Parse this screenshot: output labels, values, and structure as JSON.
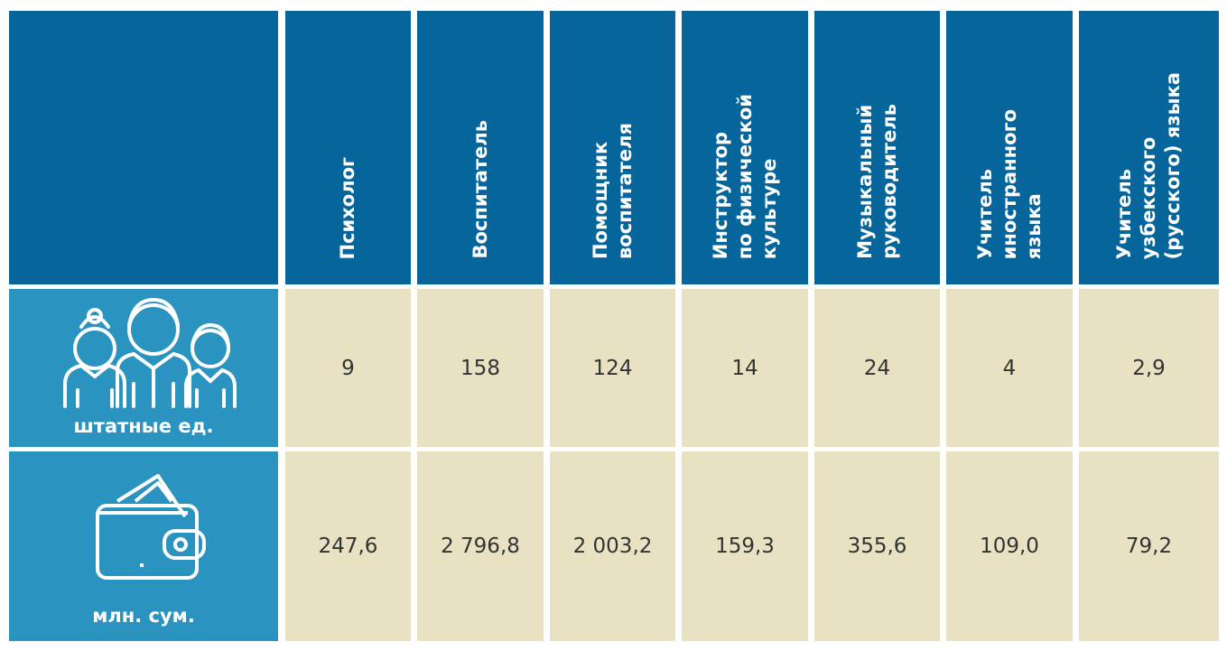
{
  "table": {
    "columns": [
      [
        "Психолог"
      ],
      [
        "Воспитатель"
      ],
      [
        "Помощник",
        "воспитателя"
      ],
      [
        "Инструктор",
        "по физической",
        "культуре"
      ],
      [
        "Музыкальный",
        "руководитель"
      ],
      [
        "Учитель",
        "иностранного",
        "языка"
      ],
      [
        "Учитель",
        "узбекского",
        "(русского) языка"
      ]
    ],
    "rows": [
      {
        "label": "штатные ед.",
        "values": [
          "9",
          "158",
          "124",
          "14",
          "24",
          "4",
          "2,9"
        ]
      },
      {
        "label": "млн. сум.",
        "values": [
          "247,6",
          "2 796,8",
          "2 003,2",
          "159,3",
          "355,6",
          "109,0",
          "79,2"
        ]
      }
    ]
  }
}
